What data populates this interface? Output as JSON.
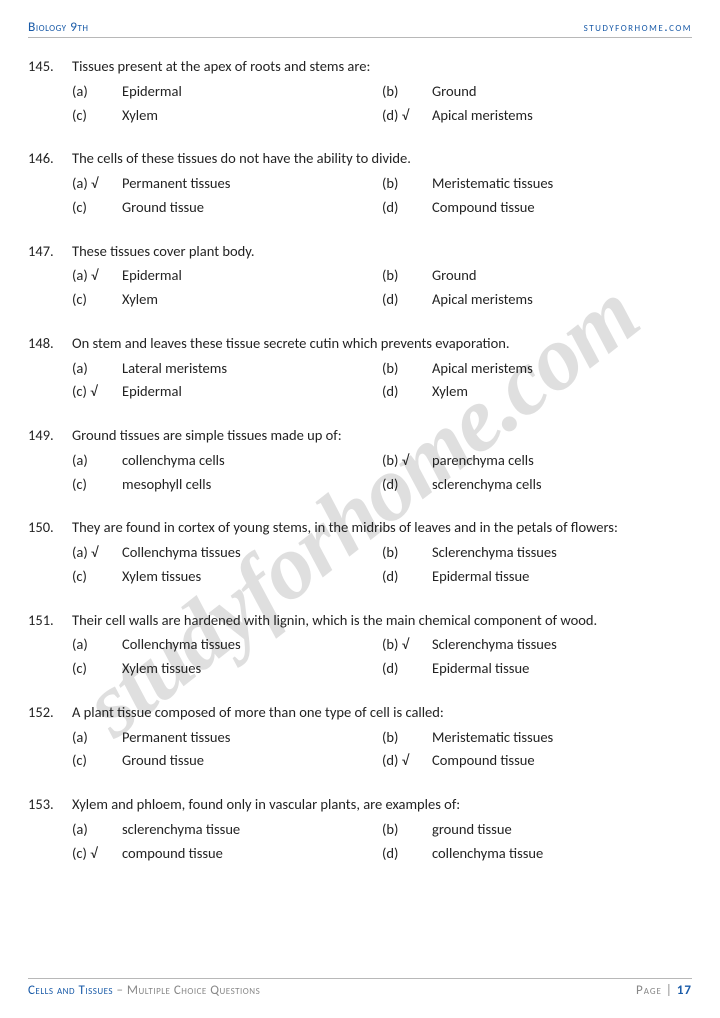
{
  "header": {
    "left": "Biology 9th",
    "right": "studyforhome.com"
  },
  "watermark": "studyforhome.com",
  "colors": {
    "accent": "#1a5ba8",
    "text": "#222222",
    "muted": "#888888",
    "border": "#b8b8b8",
    "watermark": "rgba(140,140,140,0.28)",
    "background": "#ffffff"
  },
  "typography": {
    "body_fontsize": 14.5,
    "header_fontsize": 13.5,
    "watermark_fontsize": 92,
    "font_family": "Calibri"
  },
  "questions": [
    {
      "num": "145.",
      "text": "Tissues present at the apex of roots and stems are:",
      "opts": [
        {
          "label": "(a)",
          "text": "Epidermal"
        },
        {
          "label": "(b)",
          "text": "Ground"
        },
        {
          "label": "(c)",
          "text": "Xylem"
        },
        {
          "label": "(d) √",
          "text": "Apical meristems"
        }
      ]
    },
    {
      "num": "146.",
      "text": "The cells of these tissues do not have the ability to divide.",
      "opts": [
        {
          "label": "(a) √",
          "text": "Permanent tissues"
        },
        {
          "label": "(b)",
          "text": "Meristematic tissues"
        },
        {
          "label": "(c)",
          "text": "Ground tissue"
        },
        {
          "label": "(d)",
          "text": "Compound tissue"
        }
      ]
    },
    {
      "num": "147.",
      "text": "These tissues cover plant body.",
      "opts": [
        {
          "label": "(a) √",
          "text": "Epidermal"
        },
        {
          "label": "(b)",
          "text": "Ground"
        },
        {
          "label": "(c)",
          "text": "Xylem"
        },
        {
          "label": "(d)",
          "text": "Apical meristems"
        }
      ]
    },
    {
      "num": "148.",
      "text": "On stem and leaves these tissue secrete cutin which prevents evaporation.",
      "opts": [
        {
          "label": "(a)",
          "text": "Lateral meristems"
        },
        {
          "label": "(b)",
          "text": "Apical meristems"
        },
        {
          "label": "(c) √",
          "text": "Epidermal"
        },
        {
          "label": "(d)",
          "text": "Xylem"
        }
      ]
    },
    {
      "num": "149.",
      "text": "Ground tissues are simple tissues made up of:",
      "opts": [
        {
          "label": "(a)",
          "text": "collenchyma cells"
        },
        {
          "label": "(b) √",
          "text": "parenchyma cells"
        },
        {
          "label": "(c)",
          "text": "mesophyll cells"
        },
        {
          "label": "(d)",
          "text": "sclerenchyma cells"
        }
      ]
    },
    {
      "num": "150.",
      "text": "They are found in cortex of young stems, in the midribs of leaves and in the petals of flowers:",
      "opts": [
        {
          "label": "(a) √",
          "text": "Collenchyma tissues"
        },
        {
          "label": "(b)",
          "text": "Sclerenchyma tissues"
        },
        {
          "label": "(c)",
          "text": "Xylem tissues"
        },
        {
          "label": "(d)",
          "text": "Epidermal tissue"
        }
      ]
    },
    {
      "num": "151.",
      "text": "Their cell walls are hardened with lignin, which is the main chemical component of wood.",
      "opts": [
        {
          "label": "(a)",
          "text": "Collenchyma tissues"
        },
        {
          "label": "(b) √",
          "text": "Sclerenchyma tissues"
        },
        {
          "label": "(c)",
          "text": "Xylem tissues"
        },
        {
          "label": "(d)",
          "text": "Epidermal tissue"
        }
      ]
    },
    {
      "num": "152.",
      "text": "A plant tissue composed of more than one type of cell is called:",
      "opts": [
        {
          "label": "(a)",
          "text": "Permanent tissues"
        },
        {
          "label": "(b)",
          "text": "Meristematic tissues"
        },
        {
          "label": "(c)",
          "text": "Ground tissue"
        },
        {
          "label": "(d) √",
          "text": "Compound tissue"
        }
      ]
    },
    {
      "num": "153.",
      "text": "Xylem and phloem, found only in vascular plants, are examples of:",
      "opts": [
        {
          "label": "(a)",
          "text": "sclerenchyma tissue"
        },
        {
          "label": "(b)",
          "text": "ground tissue"
        },
        {
          "label": "(c) √",
          "text": "compound tissue"
        },
        {
          "label": "(d)",
          "text": "collenchyma tissue"
        }
      ]
    }
  ],
  "footer": {
    "chapter": "Cells and Tissues",
    "subtitle": " – Multiple Choice Questions",
    "page_label": "Page |",
    "page_num": "17"
  }
}
